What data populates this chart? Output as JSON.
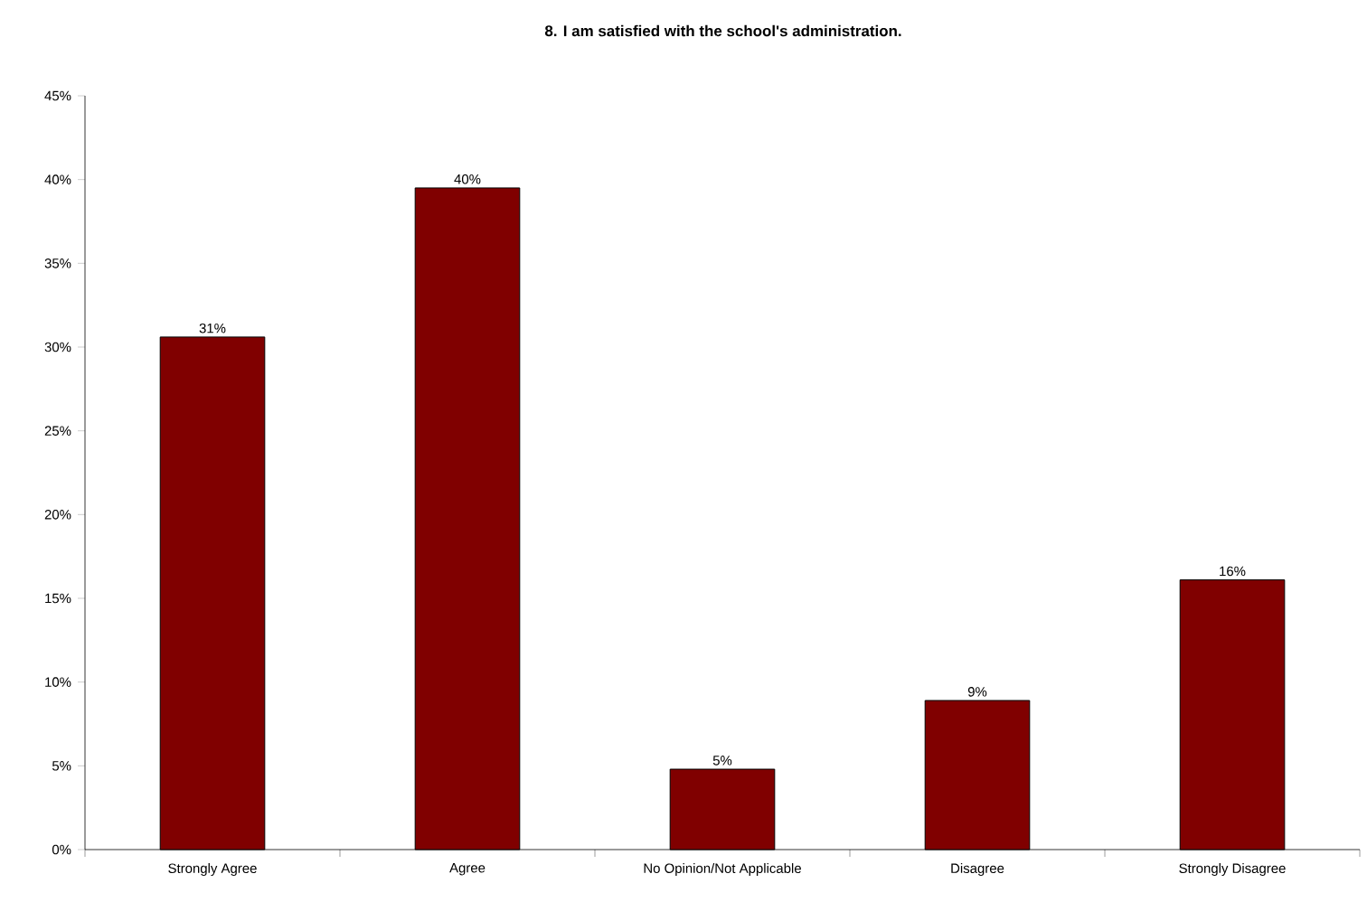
{
  "chart_data": {
    "type": "bar",
    "title": "8. I am satisfied with the school's administration.",
    "categories": [
      "Strongly Agree",
      "Agree",
      "No Opinion/Not Applicable",
      "Disagree",
      "Strongly Disagree"
    ],
    "values": [
      30.6,
      39.5,
      4.8,
      8.9,
      16.1
    ],
    "value_labels": [
      "31%",
      "40%",
      "5%",
      "9%",
      "16%"
    ],
    "color": "#800000",
    "ylim": [
      0,
      45
    ],
    "yticks": [
      {
        "value": 0,
        "label": "0%"
      },
      {
        "value": 5,
        "label": "5%"
      },
      {
        "value": 10,
        "label": "10%"
      },
      {
        "value": 15,
        "label": "15%"
      },
      {
        "value": 20,
        "label": "20%"
      },
      {
        "value": 25,
        "label": "25%"
      },
      {
        "value": 30,
        "label": "30%"
      },
      {
        "value": 35,
        "label": "35%"
      },
      {
        "value": 40,
        "label": "40%"
      },
      {
        "value": 45,
        "label": "45%"
      }
    ]
  }
}
